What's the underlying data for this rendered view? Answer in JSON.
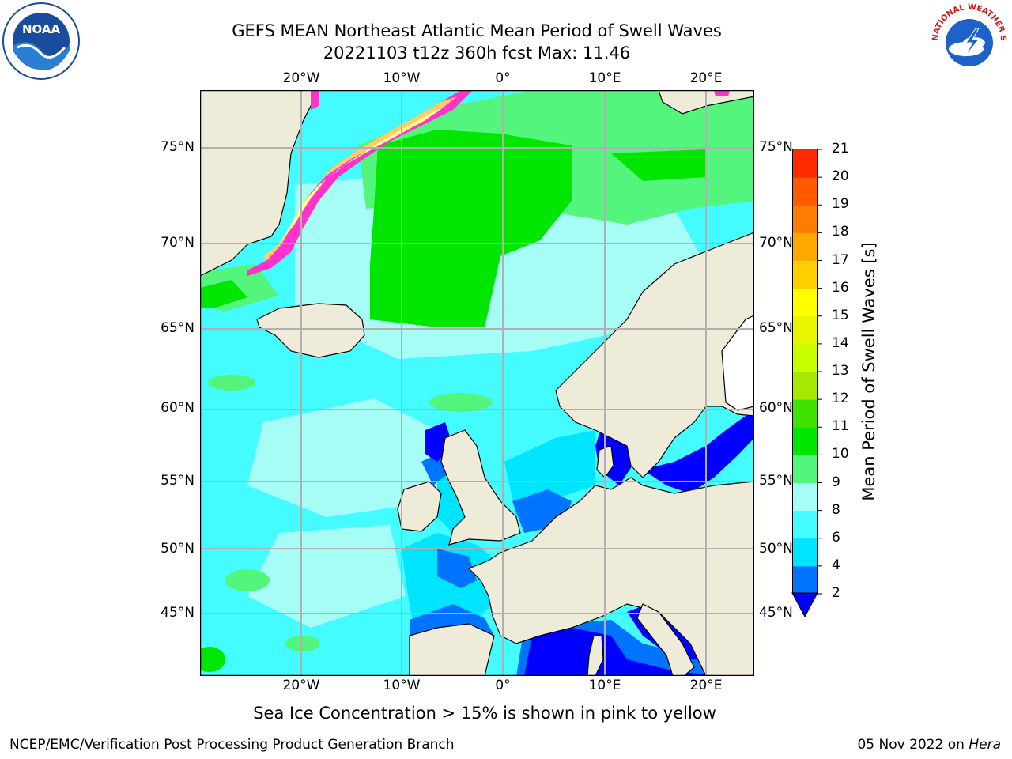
{
  "title_line1": "GEFS MEAN Northeast Atlantic Mean Period of Swell Waves",
  "title_line2": "20221103 t12z 360h fcst   Max: 11.46",
  "lon_labels": [
    "20°W",
    "10°W",
    "0°",
    "10°E",
    "20°E"
  ],
  "lat_labels": [
    "75°N",
    "70°N",
    "65°N",
    "60°N",
    "55°N",
    "50°N",
    "45°N"
  ],
  "colorbar": {
    "label": "Mean Period of Swell Waves [s]",
    "ticks": [
      "2",
      "4",
      "6",
      "8",
      "9",
      "10",
      "11",
      "12",
      "13",
      "14",
      "15",
      "16",
      "17",
      "18",
      "19",
      "20",
      "21"
    ],
    "colors": [
      "#0073ff",
      "#00e5ff",
      "#44fbff",
      "#a6fdf6",
      "#53f57c",
      "#00e600",
      "#40e000",
      "#a8e800",
      "#c8ff00",
      "#e8f500",
      "#ffff00",
      "#ffcf00",
      "#ffa800",
      "#ff7d00",
      "#ff5a00",
      "#ff2a00"
    ]
  },
  "ice_note": "Sea Ice Concentration > 15% is shown in pink to yellow",
  "credit": "NCEP/EMC/Verification Post Processing Product Generation Branch",
  "date_text": "05 Nov 2022 on ",
  "date_host": "Hera",
  "logos": {
    "noaa": "NOAA",
    "nws_text": "NATIONAL WEATHER SERVICE"
  },
  "map": {
    "ocean_colors": {
      "light_cyan": "#44fbff",
      "pale_cyan": "#a6fdf6",
      "light_green": "#53f57c",
      "green": "#00e600",
      "cyan": "#00e5ff",
      "blue": "#0073ff",
      "deep_blue": "#0000ff"
    },
    "land_color": "#eeebd9",
    "ice_colors": [
      "#ff33cc",
      "#ffcc66",
      "#ffff99"
    ],
    "grid_color": "#b0b0b0"
  }
}
